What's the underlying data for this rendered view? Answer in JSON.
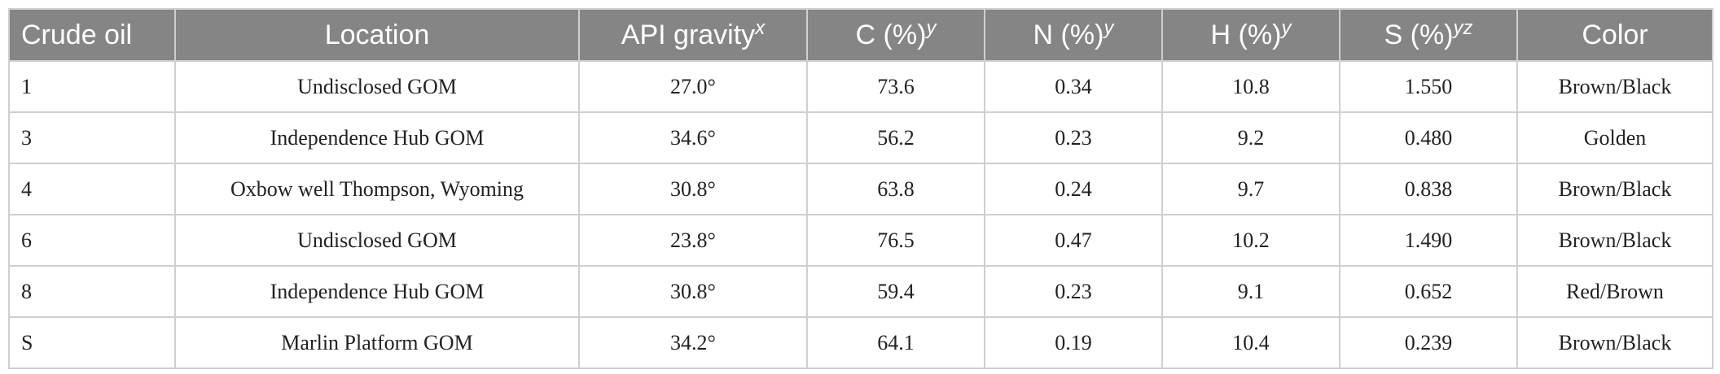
{
  "table": {
    "headers": [
      {
        "text": "Crude oil",
        "sup": ""
      },
      {
        "text": "Location",
        "sup": ""
      },
      {
        "text": "API gravity",
        "sup": "x"
      },
      {
        "text": "C (%)",
        "sup": "y"
      },
      {
        "text": "N (%)",
        "sup": "y"
      },
      {
        "text": "H (%)",
        "sup": "y"
      },
      {
        "text": "S (%)",
        "sup": "yz"
      },
      {
        "text": "Color",
        "sup": ""
      }
    ],
    "rows": [
      [
        "1",
        "Undisclosed GOM",
        "27.0°",
        "73.6",
        "0.34",
        "10.8",
        "1.550",
        "Brown/Black"
      ],
      [
        "3",
        "Independence Hub GOM",
        "34.6°",
        "56.2",
        "0.23",
        "9.2",
        "0.480",
        "Golden"
      ],
      [
        "4",
        "Oxbow well Thompson, Wyoming",
        "30.8°",
        "63.8",
        "0.24",
        "9.7",
        "0.838",
        "Brown/Black"
      ],
      [
        "6",
        "Undisclosed GOM",
        "23.8°",
        "76.5",
        "0.47",
        "10.2",
        "1.490",
        "Brown/Black"
      ],
      [
        "8",
        "Independence Hub GOM",
        "30.8°",
        "59.4",
        "0.23",
        "9.1",
        "0.652",
        "Red/Brown"
      ],
      [
        "S",
        "Marlin Platform GOM",
        "34.2°",
        "64.1",
        "0.19",
        "10.4",
        "0.239",
        "Brown/Black"
      ]
    ]
  }
}
